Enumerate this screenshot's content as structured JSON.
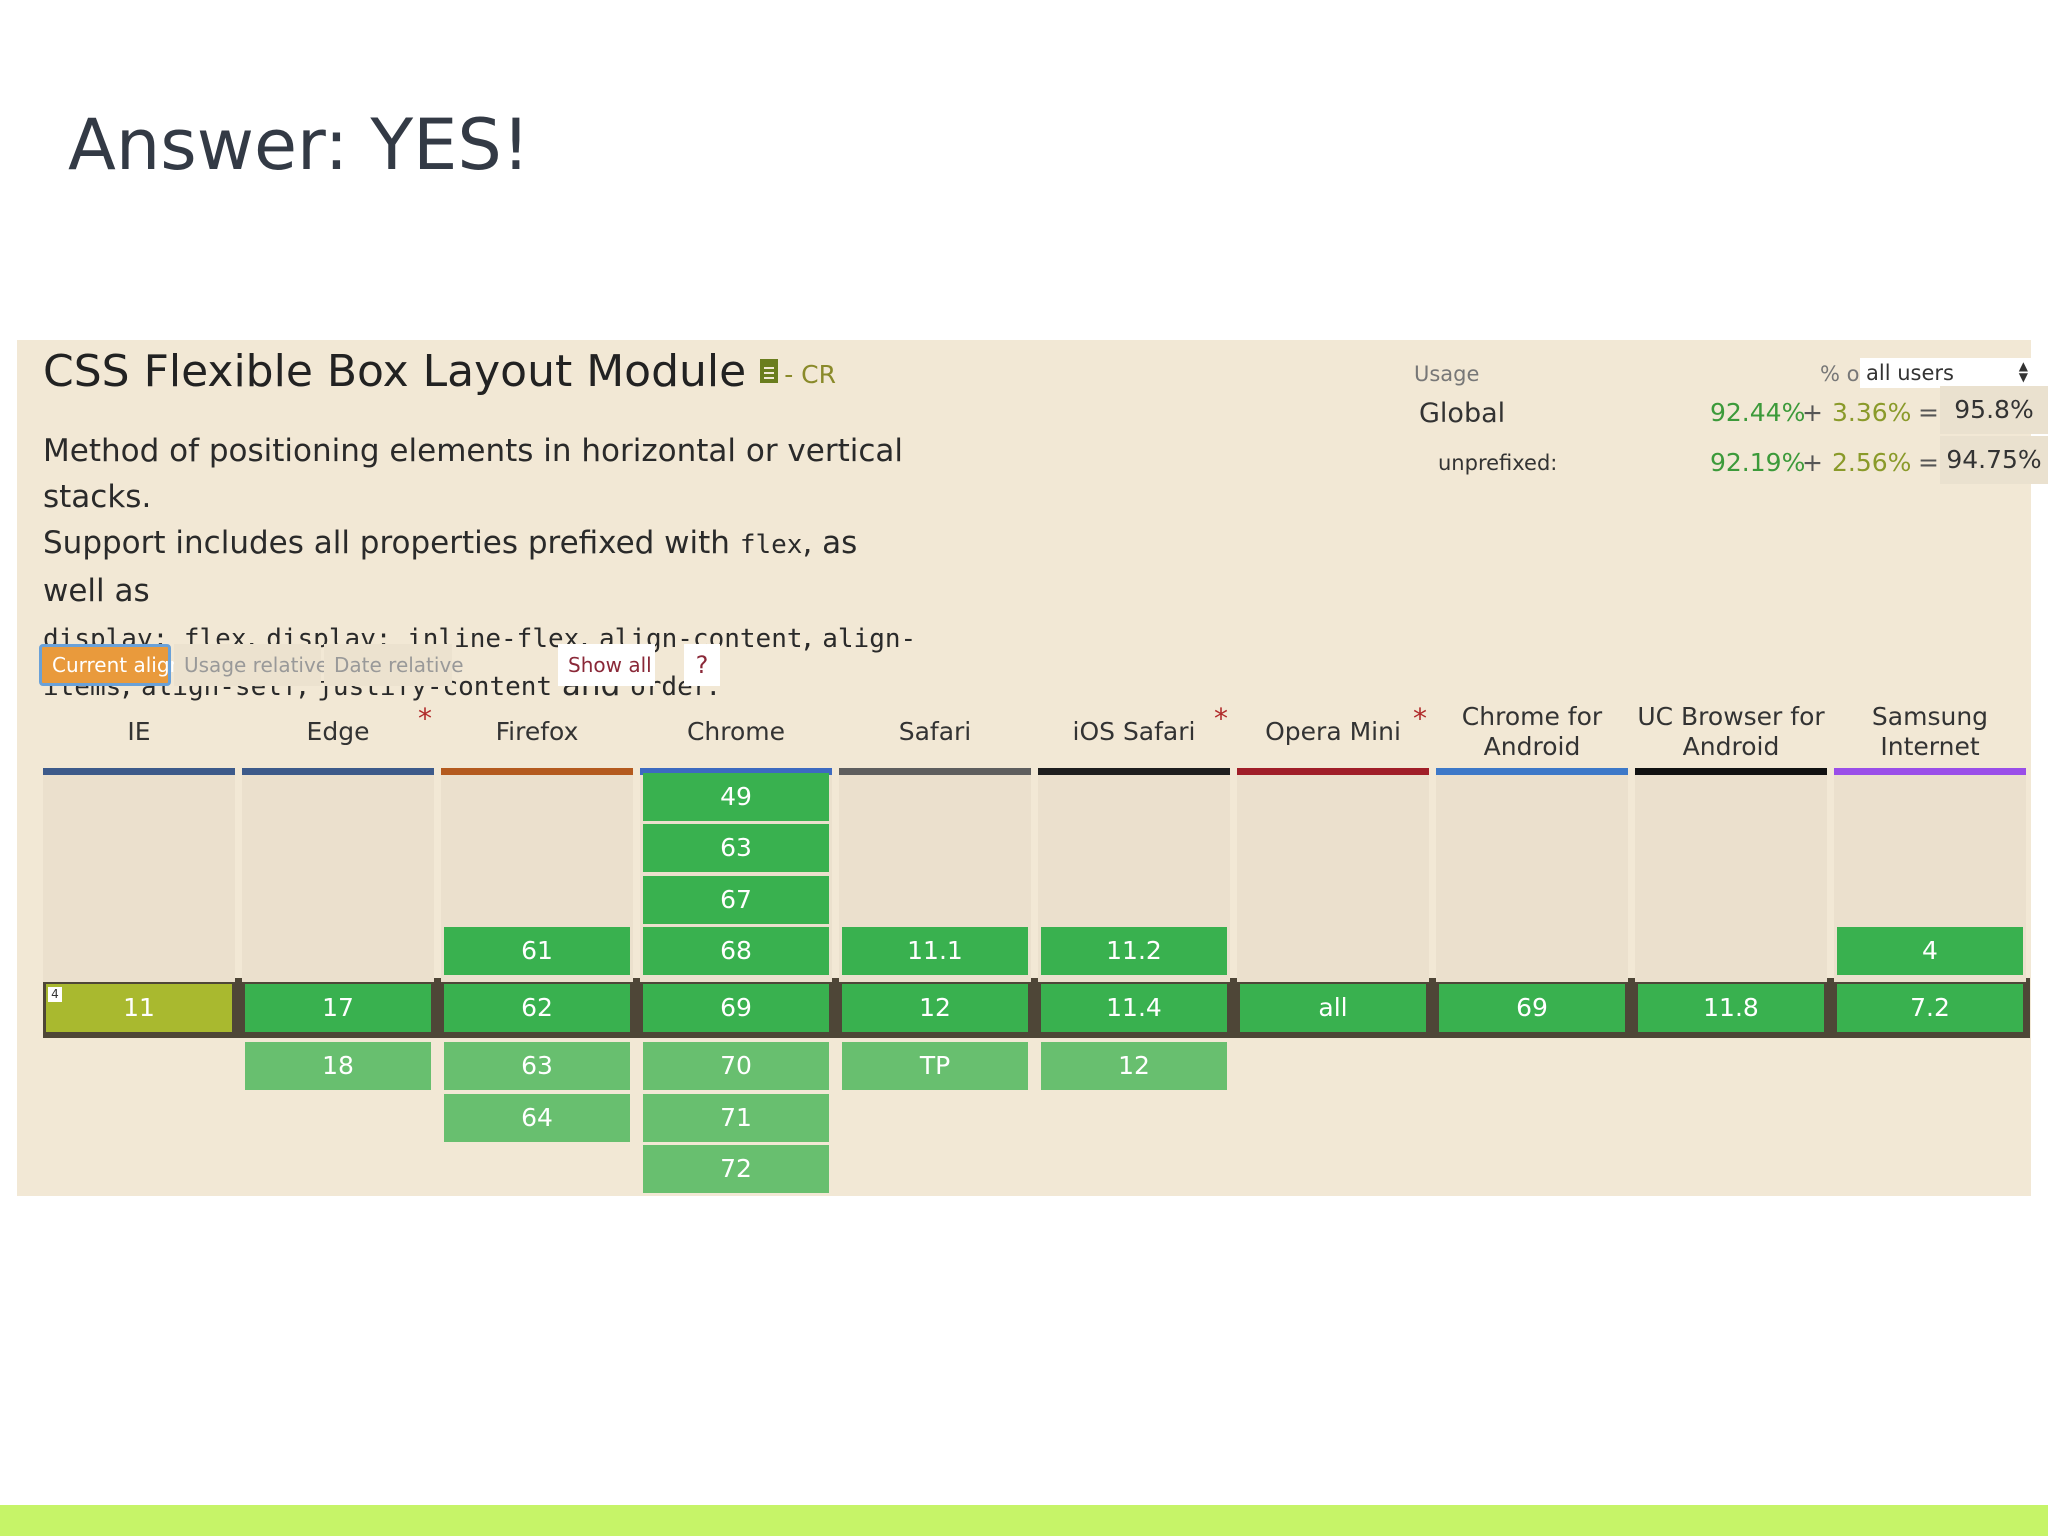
{
  "slide": {
    "title": "Answer: YES!"
  },
  "feature": {
    "title": "CSS Flexible Box Layout Module",
    "status": "- CR",
    "icon": "spec-document-icon",
    "desc_line1": "Method of positioning elements in horizontal or vertical stacks.",
    "desc_line2_a": "Support includes all properties prefixed with ",
    "desc_code_flex": "flex",
    "desc_line2_b": ", as well as",
    "desc_code_display_flex": "display: flex",
    "desc_sep1": ", ",
    "desc_code_display_inline_flex": "display: inline-flex",
    "desc_sep2": ", ",
    "desc_code_align_content": "align-content",
    "desc_sep3": ", ",
    "desc_code_align_items_a": "align-",
    "desc_code_align_items_b": "items",
    "desc_sep4": ", ",
    "desc_code_align_self": "align-self",
    "desc_sep5": ", ",
    "desc_code_justify_content": "justify-content",
    "desc_and": " and ",
    "desc_code_order": "order",
    "desc_end": "."
  },
  "usage": {
    "label": "Usage",
    "pct_of": "% of",
    "selected": "all users",
    "global": {
      "name": "Global",
      "v1": "92.44%",
      "plus": "+",
      "v2": "3.36%",
      "eq": "=",
      "total": "95.8%"
    },
    "unprefixed": {
      "name": "unprefixed:",
      "v1": "92.19%",
      "plus": "+",
      "v2": "2.56%",
      "eq": "=",
      "total": "94.75%"
    }
  },
  "buttons": {
    "current_aligned": "Current aligned",
    "usage_relative": "Usage relative",
    "date_relative": "Date relative",
    "show_all": "Show all",
    "help": "?"
  },
  "colors": {
    "supported": "#39b14f",
    "supported_future": "#68bf6f",
    "partial": "#a9b92f",
    "accent_button": "#e99a3c",
    "bottom_bar": "#c6f468"
  },
  "browsers": [
    {
      "name": "IE",
      "star": "",
      "bar_color": "#3d5a8a",
      "past": [],
      "current": "11",
      "current_partial": true,
      "current_note": "4",
      "future": []
    },
    {
      "name": "Edge",
      "star": "*",
      "bar_color": "#3d5a8a",
      "past": [],
      "current": "17",
      "current_partial": false,
      "current_note": "",
      "future": [
        "18"
      ]
    },
    {
      "name": "Firefox",
      "star": "",
      "bar_color": "#b45a1e",
      "past": [
        "61"
      ],
      "current": "62",
      "current_partial": false,
      "current_note": "",
      "future": [
        "63",
        "64"
      ]
    },
    {
      "name": "Chrome",
      "star": "",
      "bar_color": "#3d6ac0",
      "past": [
        "49",
        "63",
        "67",
        "68"
      ],
      "current": "69",
      "current_partial": false,
      "current_note": "",
      "future": [
        "70",
        "71",
        "72"
      ]
    },
    {
      "name": "Safari",
      "star": "",
      "bar_color": "#5e5e5e",
      "past": [
        "11.1"
      ],
      "current": "12",
      "current_partial": false,
      "current_note": "",
      "future": [
        "TP"
      ]
    },
    {
      "name": "iOS Safari",
      "star": "*",
      "bar_color": "#1e1e1e",
      "past": [
        "11.2"
      ],
      "current": "11.4",
      "current_partial": false,
      "current_note": "",
      "future": [
        "12"
      ]
    },
    {
      "name": "Opera Mini",
      "star": "*",
      "bar_color": "#a01e28",
      "past": [],
      "current": "all",
      "current_partial": false,
      "current_note": "",
      "future": []
    },
    {
      "name": "Chrome for Android",
      "star": "",
      "bar_color": "#3d78c8",
      "past": [],
      "current": "69",
      "current_partial": false,
      "current_note": "",
      "future": []
    },
    {
      "name": "UC Browser for Android",
      "star": "",
      "bar_color": "#111111",
      "past": [],
      "current": "11.8",
      "current_partial": false,
      "current_note": "",
      "future": []
    },
    {
      "name": "Samsung Internet",
      "star": "",
      "bar_color": "#9a4ee8",
      "past": [
        "4"
      ],
      "current": "7.2",
      "current_partial": false,
      "current_note": "",
      "future": []
    }
  ]
}
